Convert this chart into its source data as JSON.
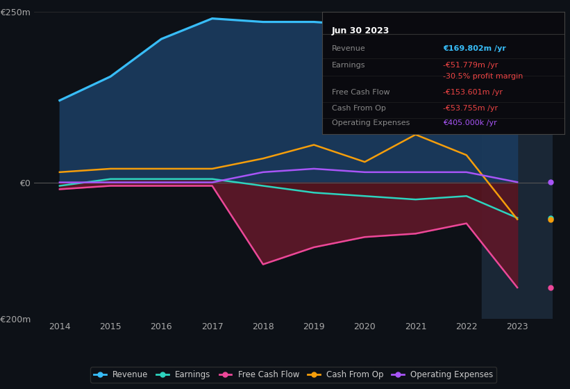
{
  "bg_color": "#0d1117",
  "plot_bg_color": "#0d1117",
  "years": [
    2014,
    2015,
    2016,
    2017,
    2018,
    2019,
    2020,
    2021,
    2022,
    2023
  ],
  "revenue": [
    120,
    155,
    210,
    240,
    235,
    235,
    230,
    195,
    175,
    170
  ],
  "earnings": [
    -5,
    5,
    5,
    5,
    -5,
    -15,
    -20,
    -25,
    -20,
    -52
  ],
  "free_cash_flow": [
    -10,
    -5,
    -5,
    -5,
    -120,
    -95,
    -80,
    -75,
    -60,
    -154
  ],
  "cash_from_op": [
    15,
    20,
    20,
    20,
    35,
    55,
    30,
    70,
    40,
    -54
  ],
  "operating_expenses": [
    0,
    0,
    0,
    0,
    15,
    20,
    15,
    15,
    15,
    0.4
  ],
  "revenue_color": "#38bdf8",
  "earnings_color": "#2dd4bf",
  "fcf_color": "#ec4899",
  "cashop_color": "#f59e0b",
  "opex_color": "#a855f7",
  "revenue_fill_color": "#1a3a5c",
  "neg_fill_color": "#5c1520",
  "highlight_bg": "#1c2a3a",
  "ylim": [
    -200,
    250
  ],
  "info_box": {
    "title": "Jun 30 2023",
    "rows": [
      {
        "label": "Revenue",
        "value": "€169.802m /yr",
        "value_color": "#38bdf8"
      },
      {
        "label": "Earnings",
        "value": "-€51.779m /yr",
        "value_color": "#ef4444"
      },
      {
        "label": "",
        "value": "-30.5% profit margin",
        "value_color": "#ef4444"
      },
      {
        "label": "Free Cash Flow",
        "value": "-€153.601m /yr",
        "value_color": "#ef4444"
      },
      {
        "label": "Cash From Op",
        "value": "-€53.755m /yr",
        "value_color": "#ef4444"
      },
      {
        "label": "Operating Expenses",
        "value": "€405.000k /yr",
        "value_color": "#a855f7"
      }
    ]
  },
  "legend": [
    {
      "label": "Revenue",
      "color": "#38bdf8"
    },
    {
      "label": "Earnings",
      "color": "#2dd4bf"
    },
    {
      "label": "Free Cash Flow",
      "color": "#ec4899"
    },
    {
      "label": "Cash From Op",
      "color": "#f59e0b"
    },
    {
      "label": "Operating Expenses",
      "color": "#a855f7"
    }
  ]
}
